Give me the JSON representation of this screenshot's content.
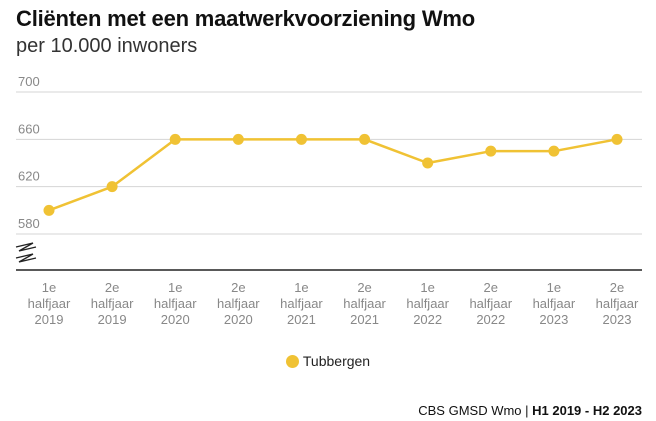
{
  "header": {
    "title": "Cliënten met een maatwerkvoorziening Wmo",
    "subtitle": "per 10.000 inwoners"
  },
  "legend": {
    "label": "Tubbergen"
  },
  "footer": {
    "source": "CBS GMSD Wmo",
    "separator": " | ",
    "range": "H1 2019 - H2 2023"
  },
  "colors": {
    "series": "#f0c234",
    "grid": "#d4d4d4",
    "axis": "#222222",
    "tick_text": "#888888"
  },
  "chart_data": {
    "type": "line",
    "title": "Cliënten met een maatwerkvoorziening Wmo",
    "subtitle": "per 10.000 inwoners",
    "categories": [
      [
        "1e",
        "halfjaar",
        "2019"
      ],
      [
        "2e",
        "halfjaar",
        "2019"
      ],
      [
        "1e",
        "halfjaar",
        "2020"
      ],
      [
        "2e",
        "halfjaar",
        "2020"
      ],
      [
        "1e",
        "halfjaar",
        "2021"
      ],
      [
        "2e",
        "halfjaar",
        "2021"
      ],
      [
        "1e",
        "halfjaar",
        "2022"
      ],
      [
        "2e",
        "halfjaar",
        "2022"
      ],
      [
        "1e",
        "halfjaar",
        "2023"
      ],
      [
        "2e",
        "halfjaar",
        "2023"
      ]
    ],
    "series": [
      {
        "name": "Tubbergen",
        "values": [
          600,
          620,
          660,
          660,
          660,
          660,
          640,
          650,
          650,
          660
        ]
      }
    ],
    "yticks": [
      580,
      620,
      660,
      700
    ],
    "ylim": [
      560,
      700
    ],
    "axis_break": true,
    "grid": true,
    "legend_position": "bottom-center",
    "xlabel": "",
    "ylabel": ""
  }
}
